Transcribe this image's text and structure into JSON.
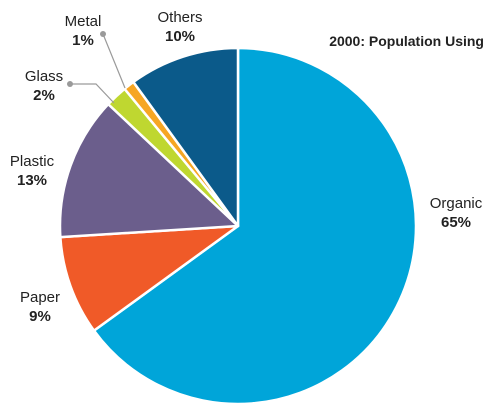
{
  "chart_data": {
    "type": "pie",
    "title": "2000: Population Using",
    "start": "top, clockwise",
    "slices": [
      {
        "label": "Organic",
        "value": 65,
        "value_label": "65%",
        "color": "#00a5d9"
      },
      {
        "label": "Paper",
        "value": 9,
        "value_label": "9%",
        "color": "#f05a28"
      },
      {
        "label": "Plastic",
        "value": 13,
        "value_label": "13%",
        "color": "#6b5e8c"
      },
      {
        "label": "Glass",
        "value": 2,
        "value_label": "2%",
        "color": "#bfd730"
      },
      {
        "label": "Metal",
        "value": 1,
        "value_label": "1%",
        "color": "#f6a623"
      },
      {
        "label": "Others",
        "value": 10,
        "value_label": "10%",
        "color": "#0b5a8a"
      }
    ],
    "leader_line_color": "#9a9a9a"
  }
}
